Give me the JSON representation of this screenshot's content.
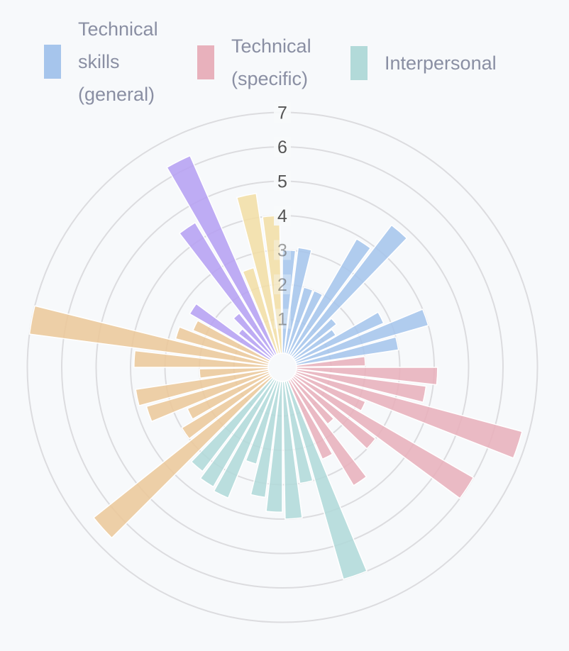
{
  "chart_data": {
    "type": "polar-bar",
    "title": "",
    "radial_axis": {
      "min": 0,
      "max": 7,
      "ticks": [
        "1",
        "2",
        "3",
        "4",
        "5",
        "6",
        "7"
      ]
    },
    "grid": true,
    "legend": {
      "placement": "top",
      "entries": [
        {
          "name": "Technical skills (general)",
          "lines": [
            "Technical",
            "skills",
            "(general)"
          ],
          "color": "#a6c5ec"
        },
        {
          "name": "Technical (specific)",
          "lines": [
            "Technical",
            "(specific)"
          ],
          "color": "#e8b1bc"
        },
        {
          "name": "Interpersonal",
          "lines": [
            "Interpersonal"
          ],
          "color": "#b2dad9"
        }
      ]
    },
    "series": [
      {
        "name": "Technical skills (general)",
        "color": "#a6c5ec",
        "values": [
          3.0,
          3.1,
          2.0,
          2.0,
          3.9,
          4.8,
          1.6,
          1.4,
          2.8,
          4.0,
          3.0
        ]
      },
      {
        "name": "Technical (specific)",
        "color": "#e8b1bc",
        "values": [
          2.0,
          4.1,
          3.8,
          6.8,
          2.2,
          6.0,
          3.0,
          1.7,
          3.6,
          2.5
        ]
      },
      {
        "name": "Interpersonal",
        "color": "#b2dad9",
        "values": [
          6.0,
          3.0,
          4.0,
          3.8,
          3.4,
          2.5,
          3.7,
          3.6,
          3.4
        ]
      },
      {
        "color": "#ecc89b",
        "values": [
          6.6,
          3.0,
          2.6,
          3.7,
          3.9,
          2.0,
          3.9,
          7.0,
          2.8,
          2.4
        ]
      },
      {
        "color": "#b6a1f3",
        "values": [
          2.7,
          1.2,
          1.6,
          4.5,
          6.3
        ]
      },
      {
        "color": "#f2dea6",
        "values": [
          2.6,
          4.7,
          4.0
        ]
      }
    ]
  }
}
